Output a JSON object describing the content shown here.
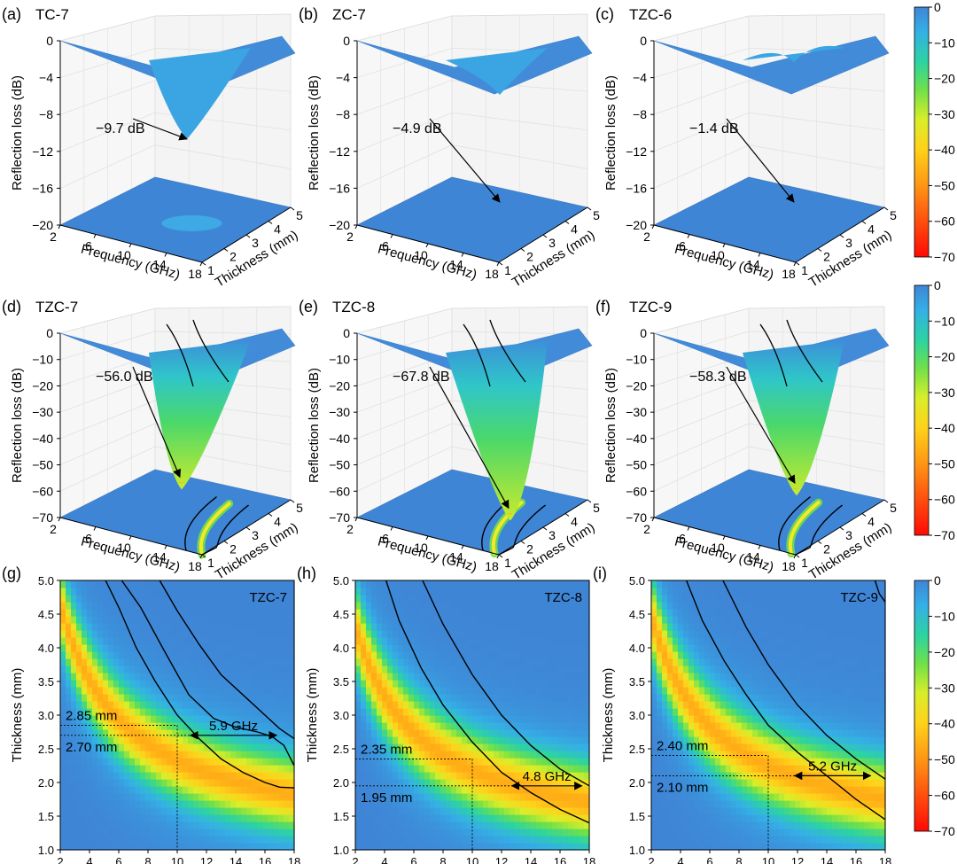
{
  "figure_panels": [
    "(a)",
    "(b)",
    "(c)",
    "(d)",
    "(e)",
    "(f)",
    "(g)",
    "(h)",
    "(i)"
  ],
  "chart_data": [
    {
      "panel": "(a)",
      "type": "surface3d",
      "title": "TC-7",
      "xlabel": "Frequency (GHz)",
      "ylabel": "Thickness (mm)",
      "zlabel": "Reflection loss (dB)",
      "x_ticks": [
        "2",
        "6",
        "10",
        "14",
        "18"
      ],
      "y_ticks": [
        "1",
        "2",
        "3",
        "4",
        "5"
      ],
      "z_ticks": [
        "0",
        "-4",
        "-8",
        "-12",
        "-16",
        "-20"
      ],
      "zlim": [
        -20,
        0
      ],
      "min_annotation": "−9.7 dB",
      "min_rl": -9.7,
      "min_freq": 11.5,
      "min_thick": 3.0,
      "contour_minus10": false
    },
    {
      "panel": "(b)",
      "type": "surface3d",
      "title": "ZC-7",
      "xlabel": "Frequency (GHz)",
      "ylabel": "Thickness (mm)",
      "zlabel": "Reflection loss (dB)",
      "x_ticks": [
        "2",
        "6",
        "10",
        "14",
        "18"
      ],
      "y_ticks": [
        "1",
        "2",
        "3",
        "4",
        "5"
      ],
      "z_ticks": [
        "0",
        "-4",
        "-8",
        "-12",
        "-16",
        "-20"
      ],
      "zlim": [
        -20,
        0
      ],
      "min_annotation": "−4.9 dB",
      "min_rl": -4.9,
      "min_freq": 14.5,
      "min_thick": 3.0,
      "contour_minus10": false
    },
    {
      "panel": "(c)",
      "type": "surface3d",
      "title": "TZC-6",
      "xlabel": "Frequency (GHz)",
      "ylabel": "Thickness (mm)",
      "zlabel": "Reflection loss (dB)",
      "x_ticks": [
        "2",
        "6",
        "10",
        "14",
        "18"
      ],
      "y_ticks": [
        "1",
        "2",
        "3",
        "4",
        "5"
      ],
      "z_ticks": [
        "0",
        "-4",
        "-8",
        "-12",
        "-16",
        "-20"
      ],
      "zlim": [
        -20,
        0
      ],
      "min_annotation": "−1.4 dB",
      "min_rl": -1.4,
      "min_freq": 14.0,
      "min_thick": 3.0,
      "contour_minus10": false
    },
    {
      "panel": "(d)",
      "type": "surface3d",
      "title": "TZC-7",
      "xlabel": "Frequency (GHz)",
      "ylabel": "Thickness (mm)",
      "zlabel": "Reflection loss (dB)",
      "x_ticks": [
        "2",
        "6",
        "10",
        "14",
        "18"
      ],
      "y_ticks": [
        "1",
        "2",
        "3",
        "4",
        "5"
      ],
      "z_ticks": [
        "0",
        "-10",
        "-20",
        "-30",
        "-40",
        "-50",
        "-60",
        "-70"
      ],
      "zlim": [
        -70,
        0
      ],
      "min_annotation": "−56.0 dB",
      "min_rl": -56.0,
      "min_freq": 10.5,
      "min_thick": 3.3,
      "contour_minus10": true
    },
    {
      "panel": "(e)",
      "type": "surface3d",
      "title": "TZC-8",
      "xlabel": "Frequency (GHz)",
      "ylabel": "Thickness (mm)",
      "zlabel": "Reflection loss (dB)",
      "x_ticks": [
        "2",
        "6",
        "10",
        "14",
        "18"
      ],
      "y_ticks": [
        "1",
        "2",
        "3",
        "4",
        "5"
      ],
      "z_ticks": [
        "0",
        "-10",
        "-20",
        "-30",
        "-40",
        "-50",
        "-60",
        "-70"
      ],
      "zlim": [
        -70,
        0
      ],
      "min_annotation": "−67.8 dB",
      "min_rl": -67.8,
      "min_freq": 16.5,
      "min_thick": 1.7,
      "contour_minus10": true
    },
    {
      "panel": "(f)",
      "type": "surface3d",
      "title": "TZC-9",
      "xlabel": "Frequency (GHz)",
      "ylabel": "Thickness (mm)",
      "zlabel": "Reflection loss (dB)",
      "x_ticks": [
        "2",
        "6",
        "10",
        "14",
        "18"
      ],
      "y_ticks": [
        "1",
        "2",
        "3",
        "4",
        "5"
      ],
      "z_ticks": [
        "0",
        "-10",
        "-20",
        "-30",
        "-40",
        "-50",
        "-60",
        "-70"
      ],
      "zlim": [
        -70,
        0
      ],
      "min_annotation": "−58.3 dB",
      "min_rl": -58.3,
      "min_freq": 14.5,
      "min_thick": 1.95,
      "contour_minus10": true
    },
    {
      "panel": "(g)",
      "type": "heatmap",
      "title": "TZC-7",
      "xlabel": "Frequency (GHz)",
      "ylabel": "Thickness (mm)",
      "x_ticks": [
        "2",
        "4",
        "6",
        "8",
        "10",
        "12",
        "14",
        "16",
        "18"
      ],
      "y_ticks": [
        "1.0",
        "1.5",
        "2.0",
        "2.5",
        "3.0",
        "3.5",
        "4.0",
        "4.5",
        "5.0"
      ],
      "xlim": [
        2,
        18
      ],
      "ylim": [
        1.0,
        5.0
      ],
      "band": {
        "a": 16.2,
        "c": 4.4,
        "w": 1.0
      },
      "contour_lower": [
        [
          6.2,
          5.0
        ],
        [
          7.5,
          4.6
        ],
        [
          9,
          4.0
        ],
        [
          10.8,
          3.3
        ],
        [
          12.5,
          2.95
        ],
        [
          14,
          2.82
        ],
        [
          15.5,
          2.75
        ],
        [
          16.5,
          2.68
        ],
        [
          17.3,
          2.55
        ],
        [
          18,
          2.25
        ]
      ],
      "contour_upper": [
        [
          8.8,
          5.0
        ],
        [
          10,
          4.55
        ],
        [
          11.5,
          4.05
        ],
        [
          13,
          3.6
        ],
        [
          14.5,
          3.3
        ],
        [
          16,
          3.0
        ],
        [
          17,
          2.8
        ],
        [
          18,
          2.65
        ]
      ],
      "contour_loop": [
        [
          5.1,
          5.0
        ],
        [
          6,
          4.6
        ],
        [
          7.2,
          4.0
        ],
        [
          8.5,
          3.5
        ],
        [
          10,
          3.0
        ],
        [
          11.5,
          2.65
        ],
        [
          13,
          2.35
        ],
        [
          14.5,
          2.15
        ],
        [
          16,
          2.0
        ],
        [
          17,
          1.93
        ],
        [
          18,
          1.92
        ]
      ],
      "thickness_markers": {
        "top_label": "2.85 mm",
        "top_value": 2.85,
        "bottom_label": "2.70 mm",
        "bottom_value": 2.7
      },
      "freq_marker": 10.0,
      "bandwidth": {
        "label": "5.9 GHz",
        "from": 10.9,
        "to": 16.8,
        "at_thickness": 2.7
      }
    },
    {
      "panel": "(h)",
      "type": "heatmap",
      "title": "TZC-8",
      "xlabel": "Frequency (GHz)",
      "ylabel": "Thickness (mm)",
      "x_ticks": [
        "2",
        "4",
        "6",
        "8",
        "10",
        "12",
        "14",
        "16",
        "18"
      ],
      "y_ticks": [
        "1.0",
        "1.5",
        "2.0",
        "2.5",
        "3.0",
        "3.5",
        "4.0",
        "4.5",
        "5.0"
      ],
      "xlim": [
        2,
        18
      ],
      "ylim": [
        1.0,
        5.0
      ],
      "band": {
        "a": 15.0,
        "c": 4.1,
        "w": 1.05
      },
      "contour_lower": [
        [
          4.1,
          5.0
        ],
        [
          5,
          4.4
        ],
        [
          6.5,
          3.7
        ],
        [
          8,
          3.15
        ],
        [
          10,
          2.6
        ],
        [
          12,
          2.15
        ],
        [
          14,
          1.85
        ],
        [
          16,
          1.6
        ],
        [
          18,
          1.4
        ]
      ],
      "contour_upper": [
        [
          6.6,
          5.0
        ],
        [
          8,
          4.35
        ],
        [
          10,
          3.6
        ],
        [
          12,
          3.0
        ],
        [
          14,
          2.55
        ],
        [
          16,
          2.2
        ],
        [
          18,
          1.95
        ]
      ],
      "thickness_markers": {
        "top_label": "2.35 mm",
        "top_value": 2.35,
        "bottom_label": "1.95 mm",
        "bottom_value": 1.95
      },
      "freq_marker": 10.0,
      "bandwidth": {
        "label": "4.8 GHz",
        "from": 12.7,
        "to": 17.5,
        "at_thickness": 1.95
      }
    },
    {
      "panel": "(i)",
      "type": "heatmap",
      "title": "TZC-9",
      "xlabel": "Frequency (GHz)",
      "ylabel": "Thickness (mm)",
      "x_ticks": [
        "2",
        "4",
        "6",
        "8",
        "10",
        "12",
        "14",
        "16",
        "18"
      ],
      "y_ticks": [
        "1.0",
        "1.5",
        "2.0",
        "2.5",
        "3.0",
        "3.5",
        "4.0",
        "4.5",
        "5.0"
      ],
      "xlim": [
        2,
        18
      ],
      "ylim": [
        1.0,
        5.0
      ],
      "band": {
        "a": 15.6,
        "c": 4.2,
        "w": 1.05
      },
      "contour_lower": [
        [
          4.4,
          5.0
        ],
        [
          5.5,
          4.4
        ],
        [
          7,
          3.8
        ],
        [
          8.5,
          3.3
        ],
        [
          10,
          2.85
        ],
        [
          12,
          2.45
        ],
        [
          14,
          2.1
        ],
        [
          16,
          1.75
        ],
        [
          18,
          1.45
        ]
      ],
      "contour_upper": [
        [
          6.9,
          5.0
        ],
        [
          8.5,
          4.3
        ],
        [
          10,
          3.75
        ],
        [
          12,
          3.15
        ],
        [
          14,
          2.7
        ],
        [
          16,
          2.35
        ],
        [
          18,
          2.05
        ]
      ],
      "contour_corner": [
        [
          17.3,
          5.0
        ],
        [
          17.6,
          4.8
        ],
        [
          18,
          4.68
        ]
      ],
      "thickness_markers": {
        "top_label": "2.40 mm",
        "top_value": 2.4,
        "bottom_label": "2.10 mm",
        "bottom_value": 2.1
      },
      "freq_marker": 10.0,
      "bandwidth": {
        "label": "5.2 GHz",
        "from": 11.8,
        "to": 17.0,
        "at_thickness": 2.1
      }
    }
  ],
  "colorbars": [
    {
      "labels": [
        "0",
        "-10",
        "-20",
        "-30",
        "-40",
        "-50",
        "-60",
        "-70"
      ],
      "range": [
        -70,
        0
      ]
    },
    {
      "labels": [
        "0",
        "-10",
        "-20",
        "-30",
        "-40",
        "-50",
        "-60",
        "-70"
      ],
      "range": [
        -70,
        0
      ]
    },
    {
      "labels": [
        "0",
        "-10",
        "-20",
        "-30",
        "-40",
        "-50",
        "-60",
        "-70"
      ],
      "range": [
        -70,
        0
      ]
    }
  ]
}
